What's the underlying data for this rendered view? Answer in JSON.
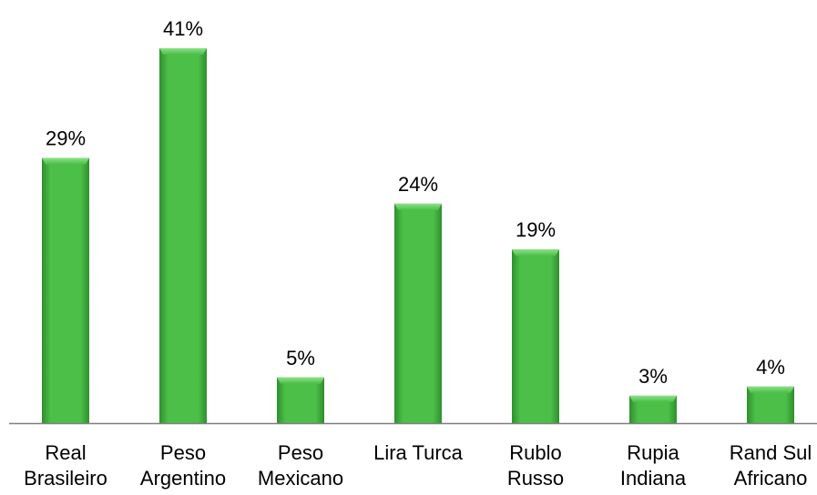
{
  "chart_data": {
    "type": "bar",
    "categories": [
      [
        "Real",
        "Brasileiro"
      ],
      [
        "Peso",
        "Argentino"
      ],
      [
        "Peso",
        "Mexicano"
      ],
      [
        "Lira Turca"
      ],
      [
        "Rublo",
        "Russo"
      ],
      [
        "Rupia",
        "Indiana"
      ],
      [
        "Rand Sul",
        "Africano"
      ]
    ],
    "values": [
      29,
      41,
      5,
      24,
      19,
      3,
      4
    ],
    "data_labels": [
      "29%",
      "41%",
      "5%",
      "24%",
      "19%",
      "3%",
      "4%"
    ],
    "value_unit": "%",
    "ylim": [
      0,
      41
    ],
    "grid": false,
    "legend": "none",
    "colors": {
      "bar_fill": "#4bbf48",
      "bar_highlight": "#8ee08a",
      "bar_shadow": "#2f8f2d",
      "axis": "#7f7f7f"
    }
  }
}
